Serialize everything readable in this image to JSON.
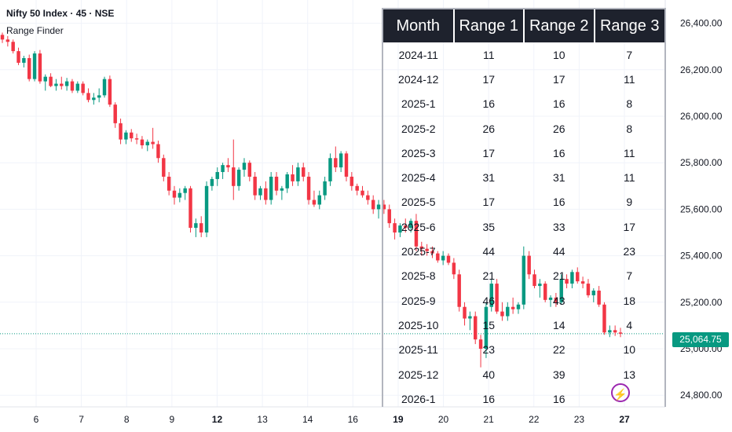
{
  "header": {
    "symbol": "Nifty 50 Index · 45 · NSE",
    "indicator": "Range Finder"
  },
  "colors": {
    "up": "#089981",
    "down": "#f23645",
    "grid": "#f0f3fa",
    "text": "#131722"
  },
  "table": {
    "headers": [
      "Month",
      "Range 1",
      "Range 2",
      "Range 3"
    ],
    "rows": [
      [
        "2024-11",
        "11",
        "10",
        "7"
      ],
      [
        "2024-12",
        "17",
        "17",
        "11"
      ],
      [
        "2025-1",
        "16",
        "16",
        "8"
      ],
      [
        "2025-2",
        "26",
        "26",
        "8"
      ],
      [
        "2025-3",
        "17",
        "16",
        "11"
      ],
      [
        "2025-4",
        "31",
        "31",
        "11"
      ],
      [
        "2025-5",
        "17",
        "16",
        "9"
      ],
      [
        "2025-6",
        "35",
        "33",
        "17"
      ],
      [
        "2025-7",
        "44",
        "44",
        "23"
      ],
      [
        "2025-8",
        "21",
        "21",
        "7"
      ],
      [
        "2025-9",
        "46",
        "43",
        "18"
      ],
      [
        "2025-10",
        "15",
        "14",
        "4"
      ],
      [
        "2025-11",
        "23",
        "22",
        "10"
      ],
      [
        "2025-12",
        "40",
        "39",
        "13"
      ],
      [
        "2026-1",
        "16",
        "16",
        ""
      ]
    ]
  },
  "last_price": "25,064.75",
  "chart_data": {
    "type": "candlestick",
    "title": "Nifty 50 Index · 45 · NSE",
    "ylim": [
      24750,
      26500
    ],
    "yticks": [
      24800,
      25000,
      25200,
      25400,
      25600,
      25800,
      26000,
      26200,
      26400
    ],
    "ytick_labels": [
      "24,800.00",
      "25,000.00",
      "25,200.00",
      "25,400.00",
      "25,600.00",
      "25,800.00",
      "26,000.00",
      "26,200.00",
      "26,400.00"
    ],
    "xticks": [
      "6",
      "7",
      "8",
      "9",
      "12",
      "13",
      "14",
      "16",
      "19",
      "20",
      "21",
      "22",
      "23",
      "27"
    ],
    "xticks_bold": [
      "12",
      "19",
      "27"
    ],
    "last_price": 25064.75,
    "candles": [
      [
        26350,
        26360,
        26315,
        26330
      ],
      [
        26330,
        26345,
        26300,
        26320
      ],
      [
        26320,
        26330,
        26270,
        26280
      ],
      [
        26280,
        26295,
        26220,
        26230
      ],
      [
        26230,
        26260,
        26210,
        26250
      ],
      [
        26250,
        26265,
        26150,
        26160
      ],
      [
        26160,
        26280,
        26150,
        26270
      ],
      [
        26270,
        26285,
        26140,
        26150
      ],
      [
        26150,
        26180,
        26110,
        26170
      ],
      [
        26170,
        26185,
        26125,
        26130
      ],
      [
        26130,
        26160,
        26110,
        26140
      ],
      [
        26140,
        26170,
        26115,
        26130
      ],
      [
        26130,
        26165,
        26110,
        26150
      ],
      [
        26150,
        26160,
        26100,
        26110
      ],
      [
        26110,
        26150,
        26100,
        26140
      ],
      [
        26140,
        26150,
        26090,
        26100
      ],
      [
        26100,
        26120,
        26060,
        26070
      ],
      [
        26070,
        26100,
        26050,
        26080
      ],
      [
        26080,
        26120,
        26060,
        26090
      ],
      [
        26090,
        26170,
        26080,
        26160
      ],
      [
        26160,
        26175,
        26040,
        26050
      ],
      [
        26050,
        26060,
        25950,
        25970
      ],
      [
        25970,
        25990,
        25880,
        25900
      ],
      [
        25900,
        25940,
        25880,
        25930
      ],
      [
        25930,
        25945,
        25890,
        25905
      ],
      [
        25905,
        25925,
        25880,
        25900
      ],
      [
        25900,
        25915,
        25860,
        25875
      ],
      [
        25875,
        25900,
        25850,
        25890
      ],
      [
        25890,
        25950,
        25860,
        25880
      ],
      [
        25880,
        25895,
        25800,
        25820
      ],
      [
        25820,
        25835,
        25720,
        25740
      ],
      [
        25740,
        25760,
        25660,
        25680
      ],
      [
        25680,
        25700,
        25620,
        25650
      ],
      [
        25650,
        25690,
        25630,
        25670
      ],
      [
        25670,
        25700,
        25640,
        25690
      ],
      [
        25690,
        25700,
        25500,
        25520
      ],
      [
        25520,
        25560,
        25480,
        25540
      ],
      [
        25540,
        25570,
        25480,
        25500
      ],
      [
        25500,
        25720,
        25480,
        25700
      ],
      [
        25700,
        25740,
        25680,
        25730
      ],
      [
        25730,
        25780,
        25700,
        25760
      ],
      [
        25760,
        25800,
        25730,
        25790
      ],
      [
        25790,
        25820,
        25760,
        25780
      ],
      [
        25780,
        25900,
        25640,
        25700
      ],
      [
        25700,
        25780,
        25680,
        25770
      ],
      [
        25770,
        25820,
        25740,
        25800
      ],
      [
        25800,
        25810,
        25720,
        25740
      ],
      [
        25740,
        25760,
        25640,
        25660
      ],
      [
        25660,
        25700,
        25640,
        25690
      ],
      [
        25690,
        25720,
        25620,
        25640
      ],
      [
        25640,
        25760,
        25620,
        25740
      ],
      [
        25740,
        25760,
        25660,
        25680
      ],
      [
        25680,
        25700,
        25640,
        25690
      ],
      [
        25690,
        25760,
        25670,
        25750
      ],
      [
        25750,
        25790,
        25700,
        25720
      ],
      [
        25720,
        25800,
        25700,
        25780
      ],
      [
        25780,
        25800,
        25720,
        25740
      ],
      [
        25740,
        25760,
        25620,
        25640
      ],
      [
        25640,
        25680,
        25610,
        25620
      ],
      [
        25620,
        25680,
        25600,
        25660
      ],
      [
        25660,
        25740,
        25640,
        25720
      ],
      [
        25720,
        25840,
        25700,
        25820
      ],
      [
        25820,
        25870,
        25760,
        25780
      ],
      [
        25780,
        25850,
        25760,
        25840
      ],
      [
        25840,
        25850,
        25720,
        25740
      ],
      [
        25740,
        25760,
        25680,
        25700
      ],
      [
        25700,
        25710,
        25660,
        25680
      ],
      [
        25680,
        25700,
        25650,
        25660
      ],
      [
        25660,
        25680,
        25620,
        25640
      ],
      [
        25640,
        25660,
        25580,
        25600
      ],
      [
        25600,
        25640,
        25560,
        25620
      ],
      [
        25620,
        25640,
        25580,
        25600
      ],
      [
        25600,
        25620,
        25520,
        25540
      ],
      [
        25540,
        25560,
        25470,
        25500
      ],
      [
        25500,
        25540,
        25480,
        25530
      ],
      [
        25530,
        25560,
        25500,
        25520
      ],
      [
        25520,
        25560,
        25500,
        25550
      ],
      [
        25550,
        25580,
        25420,
        25440
      ],
      [
        25440,
        25460,
        25400,
        25430
      ],
      [
        25430,
        25450,
        25400,
        25420
      ],
      [
        25420,
        25440,
        25390,
        25410
      ],
      [
        25410,
        25420,
        25370,
        25380
      ],
      [
        25380,
        25420,
        25360,
        25400
      ],
      [
        25400,
        25410,
        25360,
        25370
      ],
      [
        25370,
        25390,
        25300,
        25320
      ],
      [
        25320,
        25340,
        25160,
        25180
      ],
      [
        25180,
        25200,
        25100,
        25130
      ],
      [
        25130,
        25160,
        25080,
        25140
      ],
      [
        25140,
        25160,
        25020,
        25040
      ],
      [
        25040,
        25060,
        24920,
        25000
      ],
      [
        25000,
        25200,
        24960,
        25180
      ],
      [
        25180,
        25300,
        25160,
        25280
      ],
      [
        25280,
        25300,
        25150,
        25160
      ],
      [
        25160,
        25200,
        25120,
        25140
      ],
      [
        25140,
        25200,
        25120,
        25180
      ],
      [
        25180,
        25220,
        25150,
        25170
      ],
      [
        25170,
        25200,
        25150,
        25190
      ],
      [
        25190,
        25440,
        25170,
        25400
      ],
      [
        25400,
        25420,
        25300,
        25320
      ],
      [
        25320,
        25340,
        25260,
        25270
      ],
      [
        25270,
        25300,
        25220,
        25280
      ],
      [
        25280,
        25290,
        25200,
        25210
      ],
      [
        25210,
        25230,
        25180,
        25220
      ],
      [
        25220,
        25240,
        25180,
        25200
      ],
      [
        25200,
        25320,
        25190,
        25300
      ],
      [
        25300,
        25320,
        25260,
        25280
      ],
      [
        25280,
        25340,
        25260,
        25330
      ],
      [
        25330,
        25350,
        25280,
        25290
      ],
      [
        25290,
        25310,
        25260,
        25280
      ],
      [
        25280,
        25300,
        25220,
        25230
      ],
      [
        25230,
        25260,
        25200,
        25250
      ],
      [
        25250,
        25270,
        25180,
        25190
      ],
      [
        25190,
        25200,
        25060,
        25070
      ],
      [
        25070,
        25100,
        25050,
        25080
      ],
      [
        25080,
        25100,
        25055,
        25070
      ],
      [
        25070,
        25090,
        25050,
        25064.75
      ]
    ]
  }
}
